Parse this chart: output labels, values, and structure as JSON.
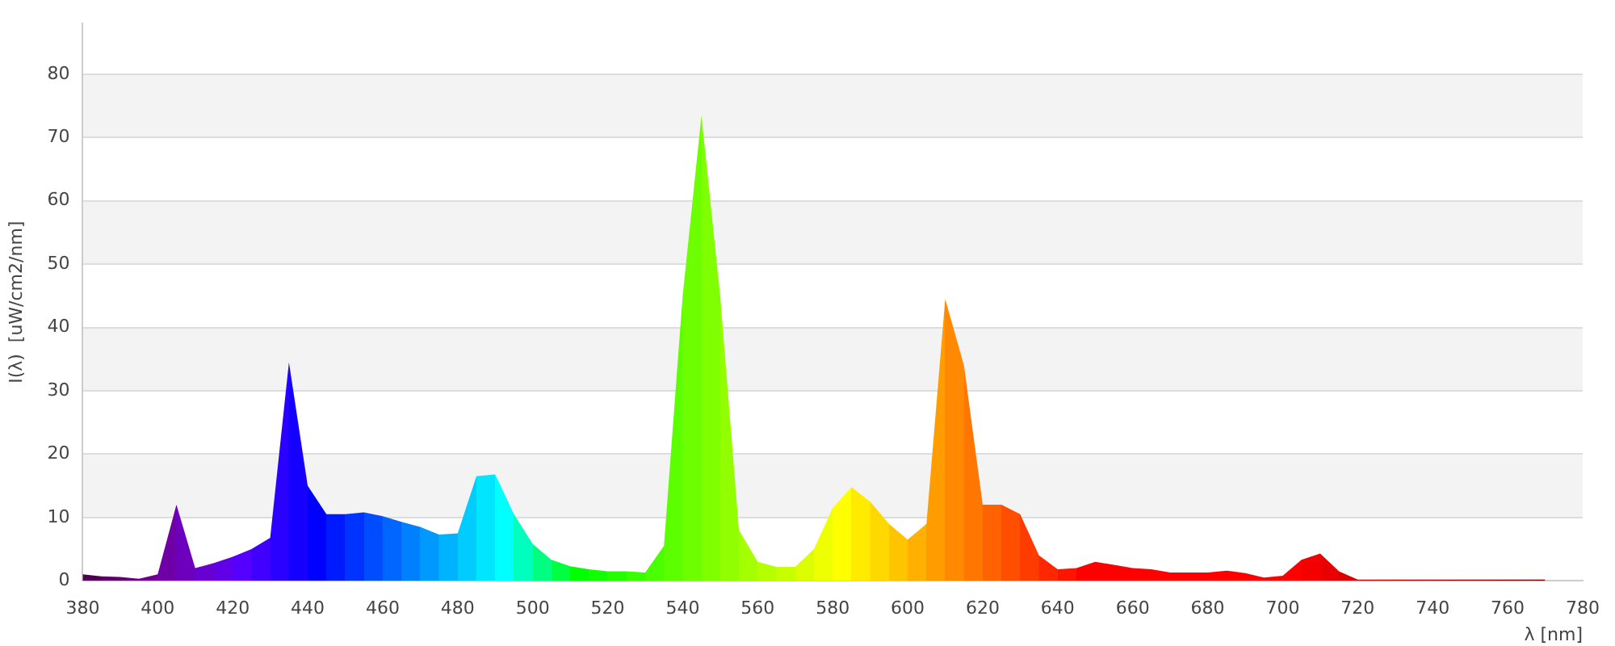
{
  "chart_data": {
    "type": "area",
    "xlabel": "λ [nm]",
    "ylabel": "I(λ)  [uW/cm2/nm]",
    "x": [
      380,
      385,
      390,
      395,
      400,
      405,
      410,
      415,
      420,
      425,
      430,
      435,
      440,
      445,
      450,
      455,
      460,
      465,
      470,
      475,
      480,
      485,
      490,
      495,
      500,
      505,
      510,
      515,
      520,
      525,
      530,
      535,
      540,
      545,
      550,
      555,
      560,
      565,
      570,
      575,
      580,
      585,
      590,
      595,
      600,
      605,
      610,
      615,
      620,
      625,
      630,
      635,
      640,
      645,
      650,
      655,
      660,
      665,
      670,
      675,
      680,
      685,
      690,
      695,
      700,
      705,
      710,
      715,
      720,
      725,
      730,
      735,
      740,
      745,
      750,
      755,
      760,
      765,
      770
    ],
    "values": [
      1.0,
      0.7,
      0.6,
      0.3,
      1.0,
      12.0,
      2.0,
      2.8,
      3.8,
      5.0,
      6.8,
      34.5,
      15,
      10.5,
      10.5,
      10.8,
      10.2,
      9.3,
      8.5,
      7.3,
      7.5,
      16.5,
      16.8,
      10.5,
      5.8,
      3.3,
      2.3,
      1.8,
      1.5,
      1.5,
      1.3,
      5.5,
      45,
      73.5,
      45,
      8,
      3,
      2.2,
      2.2,
      5,
      11.5,
      14.8,
      12.5,
      9,
      6.5,
      9,
      44.5,
      34,
      12,
      12,
      10.5,
      4,
      1.8,
      2,
      3,
      2.5,
      2,
      1.8,
      1.3,
      1.3,
      1.3,
      1.6,
      1.2,
      0.5,
      0.8,
      3.3,
      4.3,
      1.5,
      0.2,
      0.2,
      0.2,
      0.2,
      0.2,
      0.2,
      0.2,
      0.2,
      0.2,
      0.2,
      0.2
    ],
    "colors": [
      "#4d004d",
      "#5a0063",
      "#650079",
      "#6b008f",
      "#6e00a6",
      "#6d00bc",
      "#6900d2",
      "#6100e8",
      "#5500ff",
      "#4000ff",
      "#2a00ff",
      "#1500ff",
      "#0000ff",
      "#001aff",
      "#0033ff",
      "#004dff",
      "#0066ff",
      "#0080ff",
      "#0099ff",
      "#00b3ff",
      "#00ccff",
      "#00e6ff",
      "#00ffff",
      "#00ffbf",
      "#00ff80",
      "#00ff40",
      "#00ff00",
      "#12ff00",
      "#24ff00",
      "#37ff00",
      "#49ff00",
      "#5bff00",
      "#6dff00",
      "#80ff00",
      "#92ff00",
      "#a4ff00",
      "#b6ff00",
      "#c8ff00",
      "#dbff00",
      "#edff00",
      "#ffff00",
      "#ffeb00",
      "#ffd800",
      "#ffc400",
      "#ffb000",
      "#ff9d00",
      "#ff8900",
      "#ff7600",
      "#ff6200",
      "#ff4e00",
      "#ff3b00",
      "#ff2700",
      "#ff1400",
      "#ff0000",
      "#ff0000",
      "#ff0000",
      "#ff0000",
      "#ff0000",
      "#ff0000",
      "#ff0000",
      "#ff0000",
      "#ff0000",
      "#ff0000",
      "#ff0000",
      "#ff0000",
      "#f40000",
      "#e90000",
      "#dd0000",
      "#d20000",
      "#c70000",
      "#bc0000",
      "#b10000",
      "#a60000",
      "#9b0000",
      "#8f0000",
      "#840000",
      "#790000",
      "#6e0000",
      "#630000"
    ],
    "xlim": [
      380,
      780
    ],
    "xticks": [
      380,
      400,
      420,
      440,
      460,
      480,
      500,
      520,
      540,
      560,
      580,
      600,
      620,
      640,
      660,
      680,
      700,
      720,
      740,
      760,
      780
    ],
    "ylim": [
      0,
      88
    ],
    "yticks": [
      0,
      10,
      20,
      30,
      40,
      50,
      60,
      70,
      80
    ],
    "grid": "y",
    "legend": false
  }
}
